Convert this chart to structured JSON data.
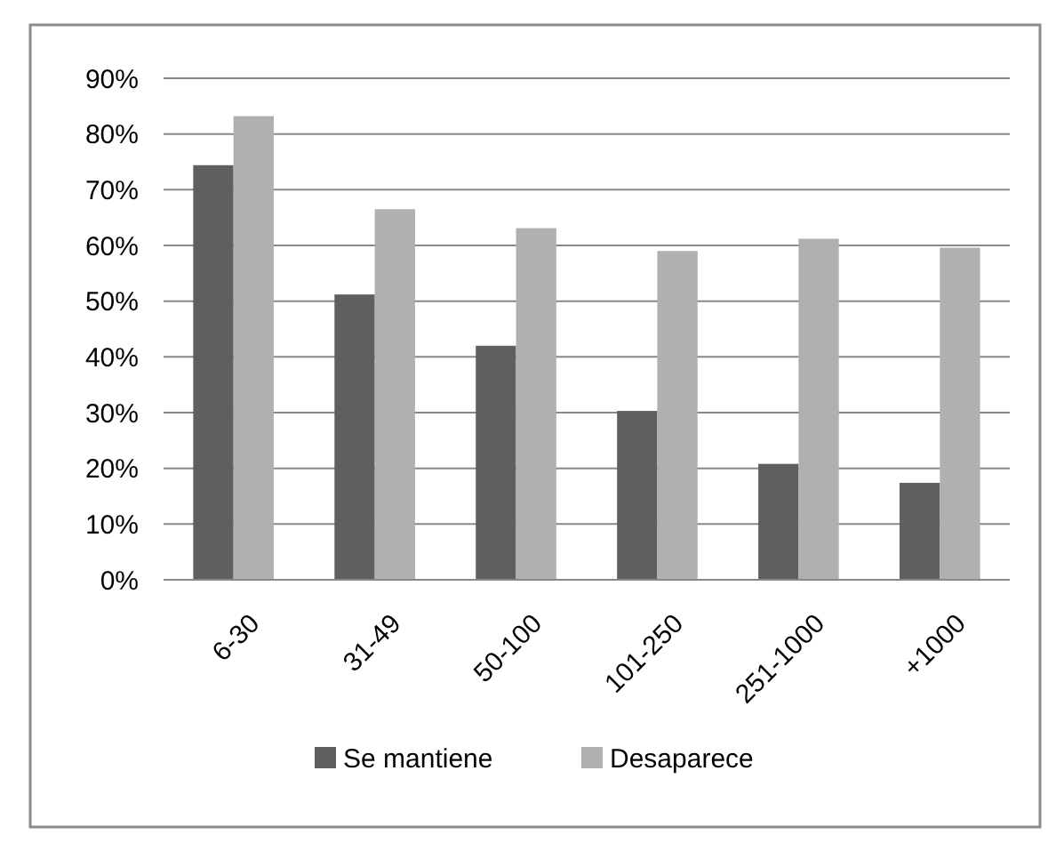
{
  "chart_data": {
    "type": "bar",
    "categories": [
      "6-30",
      "31-49",
      "50-100",
      "101-250",
      "251-1000",
      "+1000"
    ],
    "series": [
      {
        "name": "Se mantiene",
        "color": "#5f5f5f",
        "values": [
          74.4,
          51.2,
          42,
          30.3,
          20.8,
          17.4
        ]
      },
      {
        "name": "Desaparece",
        "color": "#b0b0b0",
        "values": [
          83.2,
          66.5,
          63.1,
          59,
          61.2,
          59.6
        ]
      }
    ],
    "ylim": [
      0,
      90
    ],
    "yticks": [
      {
        "value": 0,
        "label": "0%"
      },
      {
        "value": 10,
        "label": "10%"
      },
      {
        "value": 20,
        "label": "20%"
      },
      {
        "value": 30,
        "label": "30%"
      },
      {
        "value": 40,
        "label": "40%"
      },
      {
        "value": 50,
        "label": "50%"
      },
      {
        "value": 60,
        "label": "60%"
      },
      {
        "value": 70,
        "label": "70%"
      },
      {
        "value": 80,
        "label": "80%"
      },
      {
        "value": 90,
        "label": "90%"
      }
    ],
    "grid": "y",
    "legend": "bottom"
  }
}
